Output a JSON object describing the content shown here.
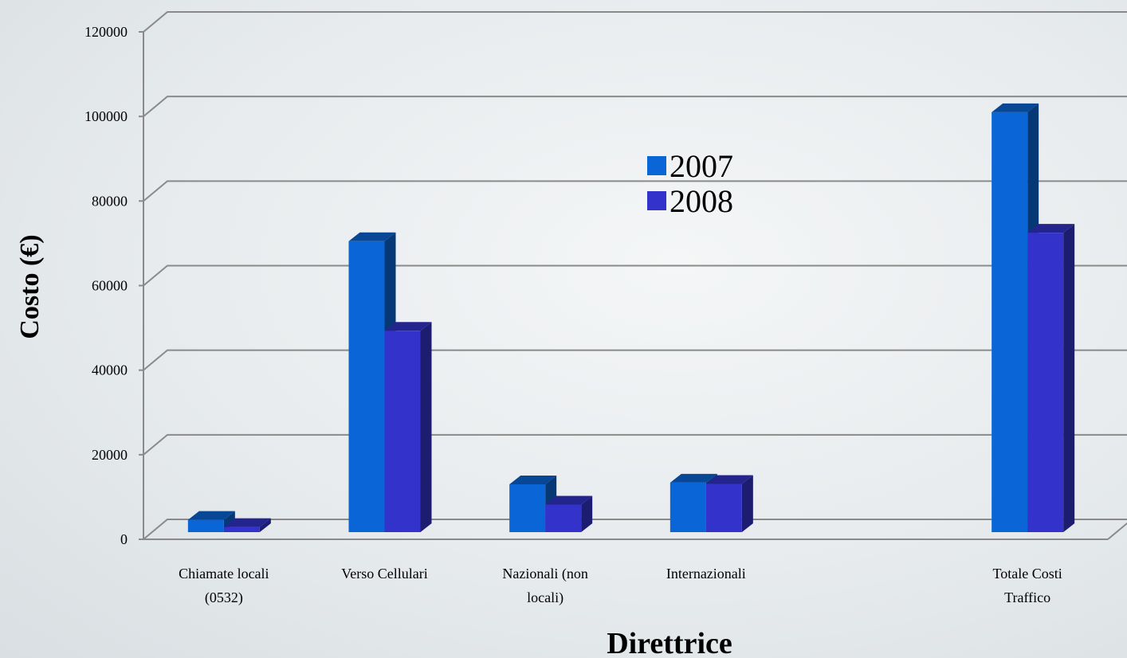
{
  "chart_data": {
    "type": "bar",
    "categories": [
      [
        "Chiamate locali",
        "(0532)"
      ],
      [
        "Verso Cellulari"
      ],
      [
        "Nazionali (non",
        "locali)"
      ],
      [
        "Internazionali"
      ],
      [
        ""
      ],
      [
        "Totale Costi",
        "Traffico"
      ]
    ],
    "series": [
      {
        "name": "2007",
        "values": [
          4600,
          70500,
          13000,
          13400,
          0,
          101000
        ],
        "color": "#0a66d6"
      },
      {
        "name": "2008",
        "values": [
          2900,
          49300,
          8200,
          13100,
          0,
          72500
        ],
        "color": "#3333cc"
      }
    ],
    "xlabel": "Direttrice",
    "ylabel": "Costo (€)",
    "ylim": [
      0,
      120000
    ],
    "yticks": [
      "0",
      "20000",
      "40000",
      "60000",
      "80000",
      "100000",
      "120000"
    ],
    "grid": true,
    "legend": "center"
  }
}
